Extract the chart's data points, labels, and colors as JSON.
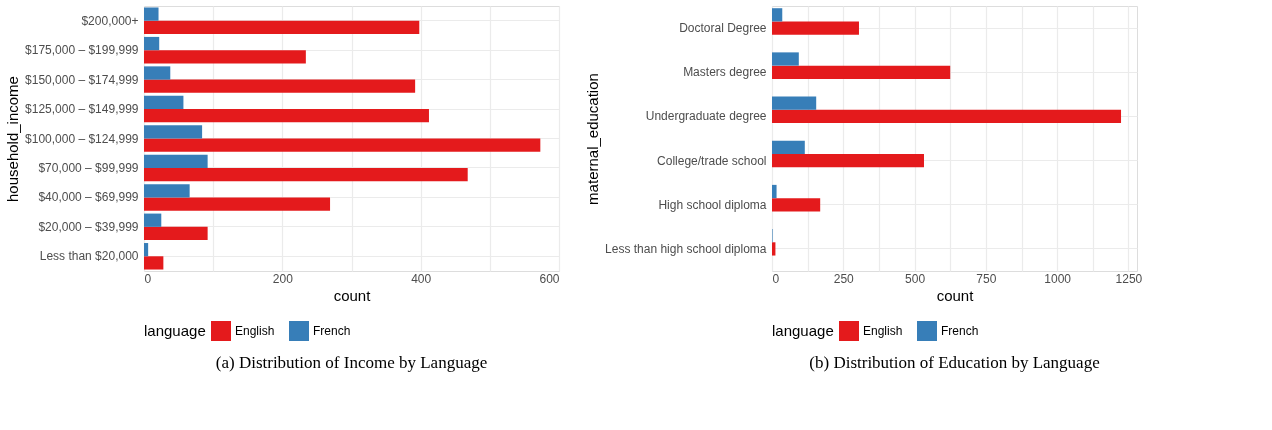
{
  "chart_data": [
    {
      "type": "bar",
      "orientation": "horizontal",
      "title": "(a) Distribution of Income by Language",
      "xlabel": "count",
      "ylabel": "household_income",
      "legend_title": "language",
      "legend": "bottom",
      "grid": true,
      "categories": [
        "$200,000+",
        "$175,000 – $199,999",
        "$150,000 – $174,999",
        "$125,000 – $149,999",
        "$100,000 – $124,999",
        "$70,000 – $99,999",
        "$40,000 – $69,999",
        "$20,000 – $39,999",
        "Less than $20,000"
      ],
      "series": [
        {
          "name": "English",
          "color": "#e41a1c",
          "values": [
            398,
            234,
            392,
            412,
            573,
            468,
            269,
            92,
            28
          ]
        },
        {
          "name": "French",
          "color": "#377eb8",
          "values": [
            21,
            22,
            38,
            57,
            84,
            92,
            66,
            25,
            6
          ]
        }
      ],
      "xlim": [
        0,
        600
      ],
      "xticks": [
        0,
        {
          "value": 100,
          "label": null
        },
        200,
        {
          "value": 300,
          "label": null
        },
        400,
        {
          "value": 500,
          "label": null
        },
        600
      ]
    },
    {
      "type": "bar",
      "orientation": "horizontal",
      "title": "(b) Distribution of Education by Language",
      "xlabel": "count",
      "ylabel": "maternal_education",
      "legend_title": "language",
      "legend": "bottom",
      "grid": true,
      "categories": [
        "Doctoral Degree",
        "Masters degree",
        "Undergraduate degree",
        "College/trade school",
        "High school diploma",
        "Less than high school diploma"
      ],
      "series": [
        {
          "name": "English",
          "color": "#e41a1c",
          "values": [
            305,
            625,
            1224,
            533,
            169,
            12
          ]
        },
        {
          "name": "French",
          "color": "#377eb8",
          "values": [
            36,
            94,
            155,
            115,
            16,
            2
          ]
        }
      ],
      "xlim": [
        0,
        1280
      ],
      "xticks": [
        0,
        {
          "value": 125,
          "label": null
        },
        250,
        {
          "value": 375,
          "label": null
        },
        500,
        {
          "value": 625,
          "label": null
        },
        750,
        {
          "value": 875,
          "label": null
        },
        1000,
        {
          "value": 1125,
          "label": null
        },
        1250
      ]
    }
  ]
}
